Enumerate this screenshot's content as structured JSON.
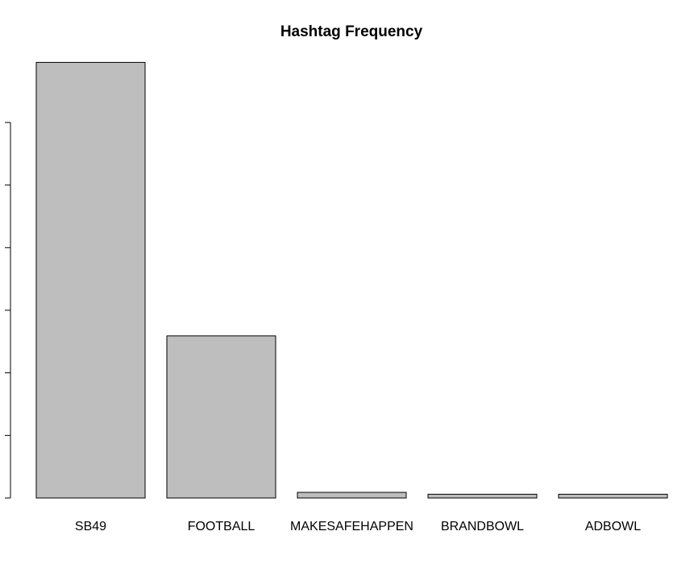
{
  "chart_data": {
    "type": "bar",
    "title": "Hashtag Frequency",
    "categories": [
      "SB49",
      "FOOTBALL",
      "MAKESAFEHAPPEN",
      "BRANDBOWL",
      "ADBOWL"
    ],
    "values": [
      696,
      259,
      9,
      6,
      6
    ],
    "color": "#bebebe",
    "ylim": [
      0,
      700
    ],
    "yticks": [
      0,
      100,
      200,
      300,
      400,
      500,
      600
    ],
    "grid": false
  }
}
